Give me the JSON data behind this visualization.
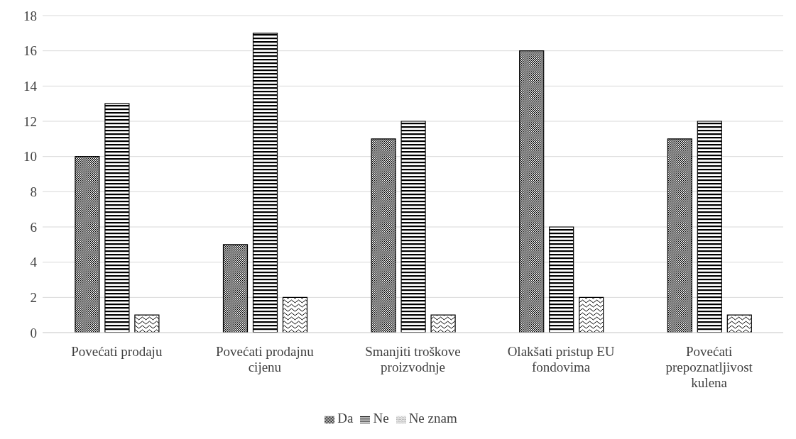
{
  "chart_data": {
    "type": "bar",
    "categories": [
      "Povećati prodaju",
      "Povećati prodajnu cijenu",
      "Smanjiti troškove proizvodnje",
      "Olakšati pristup EU fondovima",
      "Povećati prepoznatljivost kulena"
    ],
    "series": [
      {
        "name": "Da",
        "color": "#000000",
        "values": [
          10,
          5,
          11,
          16,
          11
        ]
      },
      {
        "name": "Ne",
        "color": "#000000",
        "values": [
          13,
          17,
          12,
          6,
          12
        ]
      },
      {
        "name": "Ne znam",
        "color": "#000000",
        "values": [
          1,
          2,
          1,
          2,
          1
        ]
      }
    ],
    "ylim": [
      0,
      18
    ],
    "yticks": [
      0,
      2,
      4,
      6,
      8,
      10,
      12,
      14,
      16,
      18
    ],
    "grid": "y",
    "legend": "bottom"
  }
}
